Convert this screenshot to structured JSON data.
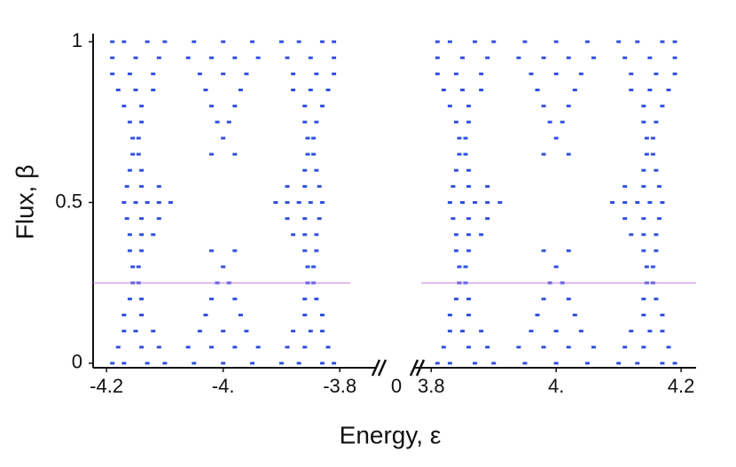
{
  "chart_data": [
    {
      "type": "scatter",
      "xlabel": "Energy, ε",
      "ylabel": "Flux, β",
      "x_break_tick": 0,
      "xlim": [
        -4.223,
        -3.782
      ],
      "xticks": [
        -4.2,
        {
          "value": -4,
          "label": "-4."
        },
        -3.8
      ],
      "ylim": [
        -0.014,
        1.025
      ],
      "yticks": [
        0,
        0.5,
        1
      ],
      "color": "#3050e0",
      "hline": 0.25,
      "hline_color": "#c77be0",
      "x": [
        -4.19,
        -4.17,
        -4.13,
        -4.1,
        -4.05,
        -4.0,
        -3.95,
        -3.9,
        -3.87,
        -3.83,
        -3.81,
        -4.18,
        -4.14,
        -4.11,
        -4.06,
        -4.02,
        -3.98,
        -3.94,
        -3.89,
        -3.86,
        -3.82,
        -4.17,
        -4.15,
        -4.12,
        -4.04,
        -4.0,
        -3.96,
        -3.88,
        -3.85,
        -3.83,
        -4.17,
        -4.14,
        -4.03,
        -3.97,
        -3.86,
        -3.83,
        -4.16,
        -4.14,
        -4.02,
        -3.98,
        -3.86,
        -3.84,
        -4.155,
        -4.145,
        -4.01,
        -3.99,
        -3.855,
        -3.845,
        -4.155,
        -4.145,
        -4.0,
        -3.855,
        -3.845,
        -4.16,
        -4.14,
        -4.02,
        -3.98,
        -3.86,
        -3.84,
        -4.16,
        -4.14,
        -4.12,
        -3.88,
        -3.86,
        -3.84,
        -4.165,
        -4.14,
        -4.11,
        -3.89,
        -3.86,
        -3.835,
        -4.17,
        -4.15,
        -4.13,
        -4.11,
        -4.09,
        -3.91,
        -3.89,
        -3.87,
        -3.85,
        -3.83,
        -4.165,
        -4.14,
        -4.11,
        -3.89,
        -3.86,
        -3.835,
        -4.16,
        -4.14,
        -3.86,
        -3.84,
        -4.155,
        -4.145,
        -4.02,
        -3.98,
        -3.855,
        -3.845,
        -4.155,
        -4.145,
        -4.0,
        -3.855,
        -3.845,
        -4.16,
        -4.14,
        -4.01,
        -3.99,
        -3.86,
        -3.84,
        -4.17,
        -4.14,
        -4.02,
        -3.98,
        -3.86,
        -3.83,
        -4.18,
        -4.15,
        -4.12,
        -4.03,
        -3.97,
        -3.88,
        -3.85,
        -3.82,
        -4.19,
        -4.16,
        -4.12,
        -4.04,
        -4.0,
        -3.96,
        -3.88,
        -3.84,
        -3.81,
        -4.19,
        -4.15,
        -4.11,
        -4.06,
        -4.02,
        -3.98,
        -3.94,
        -3.89,
        -3.85,
        -3.81,
        -4.19,
        -4.17,
        -4.13,
        -4.1,
        -4.05,
        -4.0,
        -3.95,
        -3.9,
        -3.87,
        -3.83,
        -3.81
      ],
      "values": [
        0,
        0,
        0,
        0,
        0,
        0,
        0,
        0,
        0,
        0,
        0,
        0.05,
        0.05,
        0.05,
        0.05,
        0.05,
        0.05,
        0.05,
        0.05,
        0.05,
        0.05,
        0.1,
        0.1,
        0.1,
        0.1,
        0.1,
        0.1,
        0.1,
        0.1,
        0.1,
        0.15,
        0.15,
        0.15,
        0.15,
        0.15,
        0.15,
        0.2,
        0.2,
        0.2,
        0.2,
        0.2,
        0.2,
        0.25,
        0.25,
        0.25,
        0.25,
        0.25,
        0.25,
        0.3,
        0.3,
        0.3,
        0.3,
        0.3,
        0.35,
        0.35,
        0.35,
        0.35,
        0.35,
        0.35,
        0.4,
        0.4,
        0.4,
        0.4,
        0.4,
        0.4,
        0.45,
        0.45,
        0.45,
        0.45,
        0.45,
        0.45,
        0.5,
        0.5,
        0.5,
        0.5,
        0.5,
        0.5,
        0.5,
        0.5,
        0.5,
        0.5,
        0.55,
        0.55,
        0.55,
        0.55,
        0.55,
        0.55,
        0.6,
        0.6,
        0.6,
        0.6,
        0.65,
        0.65,
        0.65,
        0.65,
        0.65,
        0.65,
        0.7,
        0.7,
        0.7,
        0.7,
        0.7,
        0.75,
        0.75,
        0.75,
        0.75,
        0.75,
        0.75,
        0.8,
        0.8,
        0.8,
        0.8,
        0.8,
        0.8,
        0.85,
        0.85,
        0.85,
        0.85,
        0.85,
        0.85,
        0.85,
        0.85,
        0.9,
        0.9,
        0.9,
        0.9,
        0.9,
        0.9,
        0.9,
        0.9,
        0.9,
        0.95,
        0.95,
        0.95,
        0.95,
        0.95,
        0.95,
        0.95,
        0.95,
        0.95,
        0.95,
        1,
        1,
        1,
        1,
        1,
        1,
        1,
        1,
        1,
        1,
        1
      ]
    },
    {
      "type": "scatter",
      "xlim": [
        3.784,
        4.224
      ],
      "xticks": [
        3.8,
        {
          "value": 4,
          "label": "4."
        },
        4.2
      ],
      "ylim": [
        -0.014,
        1.025
      ],
      "color": "#3050e0",
      "hline": 0.25,
      "hline_color": "#c77be0",
      "x": [
        4.19,
        4.17,
        4.13,
        4.1,
        4.05,
        4.0,
        3.95,
        3.9,
        3.87,
        3.83,
        3.81,
        4.18,
        4.14,
        4.11,
        4.06,
        4.02,
        3.98,
        3.94,
        3.89,
        3.86,
        3.82,
        4.17,
        4.15,
        4.12,
        4.04,
        4.0,
        3.96,
        3.88,
        3.85,
        3.83,
        4.17,
        4.14,
        4.03,
        3.97,
        3.86,
        3.83,
        4.16,
        4.14,
        4.02,
        3.98,
        3.86,
        3.84,
        4.155,
        4.145,
        4.01,
        3.99,
        3.855,
        3.845,
        4.155,
        4.145,
        4.0,
        3.855,
        3.845,
        4.16,
        4.14,
        4.02,
        3.98,
        3.86,
        3.84,
        4.16,
        4.14,
        4.12,
        3.88,
        3.86,
        3.84,
        4.165,
        4.14,
        4.11,
        3.89,
        3.86,
        3.835,
        4.17,
        4.15,
        4.13,
        4.11,
        4.09,
        3.91,
        3.89,
        3.87,
        3.85,
        3.83,
        4.165,
        4.14,
        4.11,
        3.89,
        3.86,
        3.835,
        4.16,
        4.14,
        3.86,
        3.84,
        4.155,
        4.145,
        4.02,
        3.98,
        3.855,
        3.845,
        4.155,
        4.145,
        4.0,
        3.855,
        3.845,
        4.16,
        4.14,
        4.01,
        3.99,
        3.86,
        3.84,
        4.17,
        4.14,
        4.02,
        3.98,
        3.86,
        3.83,
        4.18,
        4.15,
        4.12,
        4.03,
        3.97,
        3.88,
        3.85,
        3.82,
        4.19,
        4.16,
        4.12,
        4.04,
        4.0,
        3.96,
        3.88,
        3.84,
        3.81,
        4.19,
        4.15,
        4.11,
        4.06,
        4.02,
        3.98,
        3.94,
        3.89,
        3.85,
        3.81,
        4.19,
        4.17,
        4.13,
        4.1,
        4.05,
        4.0,
        3.95,
        3.9,
        3.87,
        3.83,
        3.81
      ],
      "values": [
        0,
        0,
        0,
        0,
        0,
        0,
        0,
        0,
        0,
        0,
        0,
        0.05,
        0.05,
        0.05,
        0.05,
        0.05,
        0.05,
        0.05,
        0.05,
        0.05,
        0.05,
        0.1,
        0.1,
        0.1,
        0.1,
        0.1,
        0.1,
        0.1,
        0.1,
        0.1,
        0.15,
        0.15,
        0.15,
        0.15,
        0.15,
        0.15,
        0.2,
        0.2,
        0.2,
        0.2,
        0.2,
        0.2,
        0.25,
        0.25,
        0.25,
        0.25,
        0.25,
        0.25,
        0.3,
        0.3,
        0.3,
        0.3,
        0.3,
        0.35,
        0.35,
        0.35,
        0.35,
        0.35,
        0.35,
        0.4,
        0.4,
        0.4,
        0.4,
        0.4,
        0.4,
        0.45,
        0.45,
        0.45,
        0.45,
        0.45,
        0.45,
        0.5,
        0.5,
        0.5,
        0.5,
        0.5,
        0.5,
        0.5,
        0.5,
        0.5,
        0.5,
        0.55,
        0.55,
        0.55,
        0.55,
        0.55,
        0.55,
        0.6,
        0.6,
        0.6,
        0.6,
        0.65,
        0.65,
        0.65,
        0.65,
        0.65,
        0.65,
        0.7,
        0.7,
        0.7,
        0.7,
        0.7,
        0.75,
        0.75,
        0.75,
        0.75,
        0.75,
        0.75,
        0.8,
        0.8,
        0.8,
        0.8,
        0.8,
        0.8,
        0.85,
        0.85,
        0.85,
        0.85,
        0.85,
        0.85,
        0.85,
        0.85,
        0.9,
        0.9,
        0.9,
        0.9,
        0.9,
        0.9,
        0.9,
        0.9,
        0.9,
        0.95,
        0.95,
        0.95,
        0.95,
        0.95,
        0.95,
        0.95,
        0.95,
        0.95,
        0.95,
        1,
        1,
        1,
        1,
        1,
        1,
        1,
        1,
        1,
        1,
        1
      ]
    }
  ]
}
